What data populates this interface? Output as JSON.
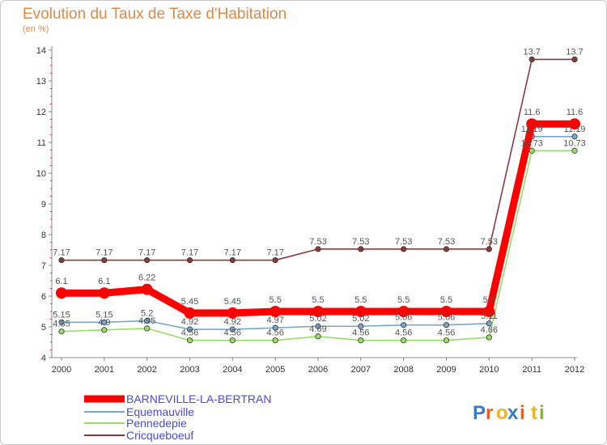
{
  "header": {
    "title": "Evolution du Taux de Taxe d'Habitation",
    "subtitle": "(en %)"
  },
  "logo": {
    "text": "Proxiti",
    "letter_colors": [
      "#3a78c8",
      "#e8601c",
      "#f0b020",
      "#3a78c8",
      "#e8601c",
      "#f0b020",
      "#7ab83a"
    ]
  },
  "chart_data": {
    "type": "line",
    "title": "Evolution du Taux de Taxe d'Habitation",
    "ylabel": "(en %)",
    "x": [
      "2000",
      "2001",
      "2002",
      "2003",
      "2004",
      "2005",
      "2006",
      "2007",
      "2008",
      "2009",
      "2010",
      "2011",
      "2012"
    ],
    "ylim": [
      4,
      14
    ],
    "yticks": [
      4,
      5,
      6,
      7,
      8,
      9,
      10,
      11,
      12,
      13,
      14
    ],
    "legend_position": "bottom-left",
    "series": [
      {
        "name": "BARNEVILLE-LA-BERTRAN",
        "color": "#ff0000",
        "values": [
          6.1,
          6.1,
          6.22,
          5.45,
          5.45,
          5.5,
          5.5,
          5.5,
          5.5,
          5.5,
          5.5,
          11.6,
          11.6
        ],
        "labels": [
          "6.1",
          "6.1",
          "6.22",
          "5.45",
          "5.45",
          "5.5",
          "5.5",
          "5.5",
          "5.5",
          "5.5",
          "5.5",
          "11.6",
          "11.6"
        ]
      },
      {
        "name": "Equemauville",
        "color": "#7aa6cc",
        "values": [
          5.15,
          5.15,
          5.2,
          4.92,
          4.92,
          4.97,
          5.02,
          5.02,
          5.06,
          5.06,
          5.11,
          11.19,
          11.19
        ],
        "labels": [
          "5.15",
          "5.15",
          "5.2",
          "4.92",
          "4.92",
          "4.97",
          "5.02",
          "5.02",
          "5.06",
          "5.06",
          "5.11",
          "11.19",
          "11.19"
        ]
      },
      {
        "name": "Pennedepie",
        "color": "#99dd66",
        "values": [
          4.85,
          4.9,
          4.95,
          4.56,
          4.56,
          4.56,
          4.69,
          4.56,
          4.56,
          4.56,
          4.66,
          10.73,
          10.73
        ],
        "labels": [
          "4.85",
          "4.9",
          "4.95",
          "4.56",
          "4.56",
          "4.56",
          "4.69",
          "4.56",
          "4.56",
          "4.56",
          "4.66",
          "10.73",
          "10.73"
        ]
      },
      {
        "name": "Cricqueboeuf",
        "color": "#8b3a3a",
        "values": [
          7.17,
          7.17,
          7.17,
          7.17,
          7.17,
          7.17,
          7.53,
          7.53,
          7.53,
          7.53,
          7.53,
          13.7,
          13.7
        ],
        "labels": [
          "7.17",
          "7.17",
          "7.17",
          "7.17",
          "7.17",
          "7.17",
          "7.53",
          "7.53",
          "7.53",
          "7.53",
          "7.53",
          "13.7",
          "13.7"
        ]
      }
    ]
  }
}
